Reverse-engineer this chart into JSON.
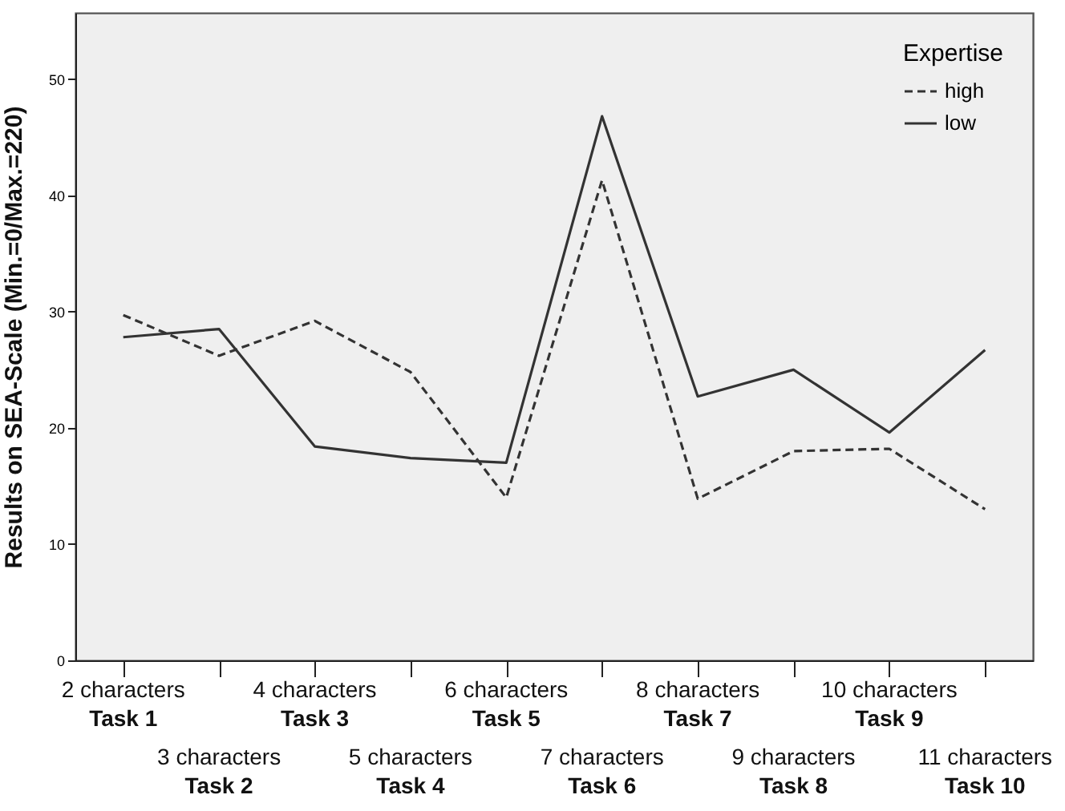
{
  "chart_data": {
    "type": "line",
    "ylabel": "Results on SEA-Scale (Min.=0/Max.=220)",
    "legend_title": "Expertise",
    "categories": [
      "2 characters\nTask 1",
      "3 characters\nTask 2",
      "4 characters\nTask 3",
      "5 characters\nTask 4",
      "6 characters\nTask 5",
      "7 characters\nTask 6",
      "8 characters\nTask 7",
      "9 characters\nTask 8",
      "10 characters\nTask 9",
      "11 characters\nTask 10"
    ],
    "series": [
      {
        "name": "high",
        "color": "#333333",
        "line_style": "dashed",
        "values": [
          29.7,
          26.2,
          29.2,
          24.8,
          14.0,
          41.3,
          13.9,
          18.0,
          18.2,
          13.0
        ]
      },
      {
        "name": "low",
        "color": "#333333",
        "line_style": "solid",
        "values": [
          27.8,
          28.5,
          18.4,
          17.4,
          17.0,
          46.8,
          22.7,
          25.0,
          19.6,
          26.7
        ]
      }
    ],
    "ylim": [
      0,
      55.7
    ],
    "yticks": [
      0,
      10,
      20,
      30,
      40,
      50
    ],
    "grid": false,
    "legend": "top right",
    "marker": "none"
  }
}
